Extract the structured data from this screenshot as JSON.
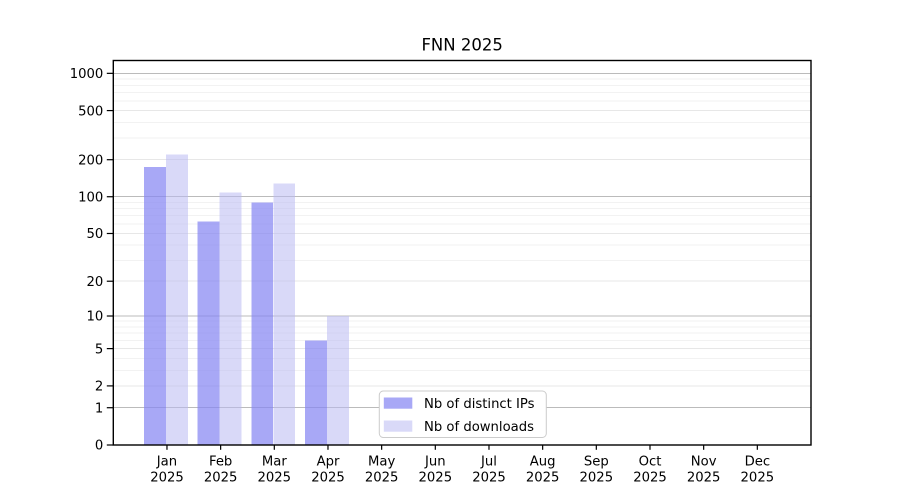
{
  "figure": {
    "background": "#ffffff"
  },
  "chart_data": {
    "type": "bar",
    "title": "FNN 2025",
    "categories": [
      "Jan 2025",
      "Feb 2025",
      "Mar 2025",
      "Apr 2025",
      "May 2025",
      "Jun 2025",
      "Jul 2025",
      "Aug 2025",
      "Sep 2025",
      "Oct 2025",
      "Nov 2025",
      "Dec 2025"
    ],
    "x_tick_months": [
      "Jan",
      "Feb",
      "Mar",
      "Apr",
      "May",
      "Jun",
      "Jul",
      "Aug",
      "Sep",
      "Oct",
      "Nov",
      "Dec"
    ],
    "x_tick_year": "2025",
    "series": [
      {
        "name": "Nb of distinct IPs",
        "color": "rgba(135,135,242,0.72)",
        "solid_color": "#a9a9f6",
        "values": [
          175,
          63,
          90,
          6,
          0,
          0,
          0,
          0,
          0,
          0,
          0,
          0
        ]
      },
      {
        "name": "Nb of downloads",
        "color": "rgba(185,185,242,0.55)",
        "solid_color": "#d9d9f8",
        "values": [
          220,
          108,
          128,
          10,
          0,
          0,
          0,
          0,
          0,
          0,
          0,
          0
        ]
      }
    ],
    "xlabel": "",
    "ylabel": "",
    "y_scale": "log1p",
    "ylim": [
      0,
      1270
    ],
    "y_ticks": [
      0,
      1,
      2,
      5,
      10,
      20,
      50,
      100,
      200,
      500,
      1000
    ],
    "grid": {
      "decade_lines": [
        1,
        10,
        100,
        1000
      ],
      "sub_major_lines": [
        2,
        5,
        20,
        50,
        200,
        500
      ],
      "minor_lines": [
        3,
        4,
        6,
        7,
        8,
        9,
        30,
        40,
        60,
        70,
        80,
        90,
        300,
        400,
        600,
        700,
        800,
        900
      ],
      "decade_color": "#bbbbbb",
      "sub_major_color": "#e7e7e7",
      "minor_color": "#f2f2f2"
    },
    "legend": {
      "position": "lower center",
      "items": [
        "Nb of distinct IPs",
        "Nb of downloads"
      ],
      "border_color": "#cccccc",
      "background": "#ffffff"
    }
  }
}
